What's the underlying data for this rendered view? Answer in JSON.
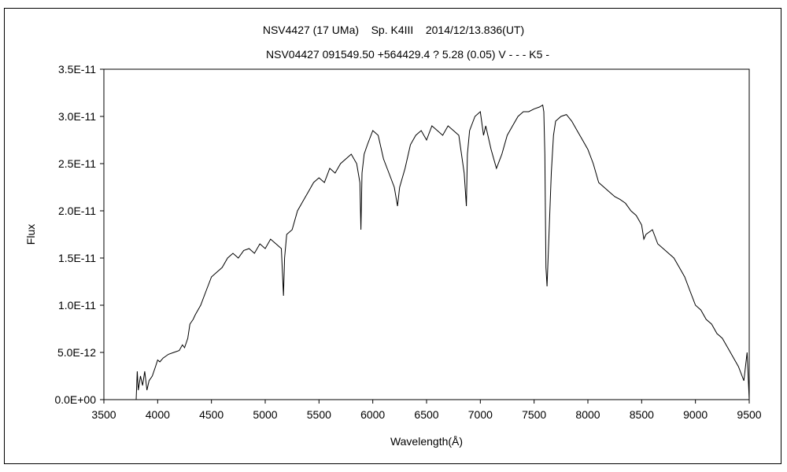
{
  "chart_data": {
    "type": "line",
    "title": "NSV4427 (17 UMa)    Sp. K4III    2014/12/13.836(UT)",
    "subtitle": "NSV04427 091549.50 +564429.4 ? 5.28 (0.05) V - - - K5 -",
    "xlabel": "Wavelength(Å)",
    "ylabel": "Flux",
    "xlim": [
      3500,
      9500
    ],
    "ylim": [
      0,
      3.5e-11
    ],
    "x_ticks": [
      3500,
      4000,
      4500,
      5000,
      5500,
      6000,
      6500,
      7000,
      7500,
      8000,
      8500,
      9000,
      9500
    ],
    "y_ticks": [
      0,
      5e-12,
      1e-11,
      1.5e-11,
      2e-11,
      2.5e-11,
      3e-11,
      3.5e-11
    ],
    "x_tick_labels": [
      "3500",
      "4000",
      "4500",
      "5000",
      "5500",
      "6000",
      "6500",
      "7000",
      "7500",
      "8000",
      "8500",
      "9000",
      "9500"
    ],
    "y_tick_labels": [
      "0.0E+00",
      "5.0E-12",
      "1.0E-11",
      "1.5E-11",
      "2.0E-11",
      "2.5E-11",
      "3.0E-11",
      "3.5E-11"
    ],
    "grid": false,
    "line_color": "#000000",
    "series": [
      {
        "x": [
          3800,
          3810,
          3820,
          3840,
          3860,
          3880,
          3900,
          3920,
          3950,
          3980,
          4000,
          4020,
          4050,
          4100,
          4150,
          4200,
          4230,
          4250,
          4280,
          4300,
          4330,
          4350,
          4400,
          4450,
          4500,
          4550,
          4600,
          4650,
          4700,
          4750,
          4800,
          4850,
          4900,
          4950,
          5000,
          5050,
          5100,
          5150,
          5170,
          5180,
          5200,
          5250,
          5300,
          5350,
          5400,
          5450,
          5500,
          5550,
          5600,
          5650,
          5700,
          5750,
          5800,
          5850,
          5880,
          5890,
          5900,
          5920,
          5950,
          6000,
          6050,
          6100,
          6150,
          6200,
          6230,
          6250,
          6300,
          6350,
          6400,
          6450,
          6500,
          6550,
          6600,
          6650,
          6700,
          6750,
          6800,
          6850,
          6870,
          6880,
          6900,
          6950,
          7000,
          7030,
          7050,
          7100,
          7150,
          7200,
          7250,
          7300,
          7350,
          7400,
          7450,
          7500,
          7550,
          7580,
          7590,
          7600,
          7610,
          7620,
          7640,
          7660,
          7680,
          7700,
          7750,
          7800,
          7850,
          7900,
          7950,
          8000,
          8050,
          8100,
          8150,
          8200,
          8250,
          8300,
          8350,
          8400,
          8450,
          8500,
          8520,
          8540,
          8600,
          8650,
          8700,
          8750,
          8800,
          8850,
          8900,
          8950,
          9000,
          9050,
          9100,
          9150,
          9200,
          9250,
          9300,
          9350,
          9400,
          9450,
          9480,
          9500
        ],
        "y": [
          0,
          3e-12,
          1e-12,
          2.5e-12,
          1.5e-12,
          3e-12,
          1e-12,
          2e-12,
          2.5e-12,
          3.5e-12,
          4.2e-12,
          4e-12,
          4.4e-12,
          4.8e-12,
          5e-12,
          5.2e-12,
          5.8e-12,
          5.5e-12,
          6.5e-12,
          8e-12,
          8.5e-12,
          9e-12,
          1e-11,
          1.15e-11,
          1.3e-11,
          1.35e-11,
          1.4e-11,
          1.5e-11,
          1.55e-11,
          1.5e-11,
          1.58e-11,
          1.6e-11,
          1.55e-11,
          1.65e-11,
          1.6e-11,
          1.7e-11,
          1.65e-11,
          1.6e-11,
          1.1e-11,
          1.5e-11,
          1.75e-11,
          1.8e-11,
          2e-11,
          2.1e-11,
          2.2e-11,
          2.3e-11,
          2.35e-11,
          2.3e-11,
          2.45e-11,
          2.4e-11,
          2.5e-11,
          2.55e-11,
          2.6e-11,
          2.5e-11,
          2.3e-11,
          1.8e-11,
          2.4e-11,
          2.6e-11,
          2.7e-11,
          2.85e-11,
          2.8e-11,
          2.55e-11,
          2.4e-11,
          2.25e-11,
          2.05e-11,
          2.25e-11,
          2.45e-11,
          2.7e-11,
          2.8e-11,
          2.85e-11,
          2.75e-11,
          2.9e-11,
          2.85e-11,
          2.8e-11,
          2.9e-11,
          2.85e-11,
          2.8e-11,
          2.4e-11,
          2.05e-11,
          2.6e-11,
          2.85e-11,
          3e-11,
          3.05e-11,
          2.8e-11,
          2.9e-11,
          2.65e-11,
          2.45e-11,
          2.6e-11,
          2.8e-11,
          2.9e-11,
          3e-11,
          3.05e-11,
          3.05e-11,
          3.08e-11,
          3.1e-11,
          3.12e-11,
          3.05e-11,
          2.6e-11,
          1.4e-11,
          1.2e-11,
          1.8e-11,
          2.4e-11,
          2.8e-11,
          2.95e-11,
          3e-11,
          3.02e-11,
          2.95e-11,
          2.85e-11,
          2.75e-11,
          2.65e-11,
          2.5e-11,
          2.3e-11,
          2.25e-11,
          2.2e-11,
          2.15e-11,
          2.12e-11,
          2.08e-11,
          2e-11,
          1.95e-11,
          1.85e-11,
          1.7e-11,
          1.75e-11,
          1.8e-11,
          1.65e-11,
          1.6e-11,
          1.55e-11,
          1.5e-11,
          1.4e-11,
          1.3e-11,
          1.15e-11,
          1e-11,
          9.5e-12,
          8.5e-12,
          8e-12,
          7e-12,
          6.5e-12,
          5.5e-12,
          4.5e-12,
          3.5e-12,
          2e-12,
          5e-12,
          0
        ]
      }
    ]
  }
}
